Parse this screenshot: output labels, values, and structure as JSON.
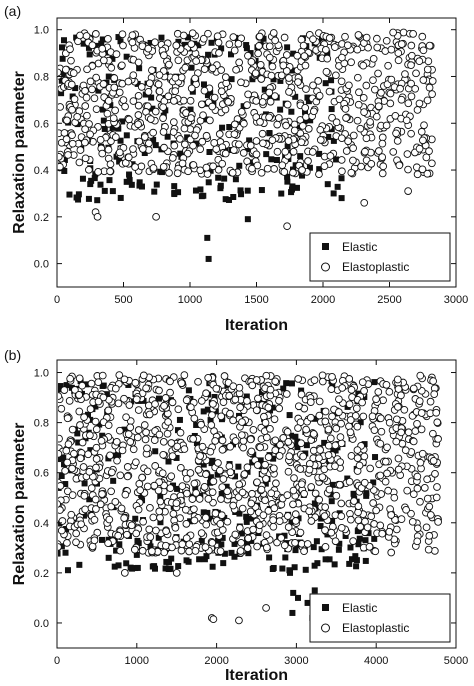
{
  "chart_data": [
    {
      "panel": "(a)",
      "type": "scatter",
      "xlabel": "Iteration",
      "ylabel": "Relaxation parameter",
      "xlim": [
        0,
        3000
      ],
      "ylim": [
        -0.1,
        1.05
      ],
      "xticks": [
        0,
        500,
        1000,
        1500,
        2000,
        2500,
        3000
      ],
      "yticks": [
        0.0,
        0.2,
        0.4,
        0.6,
        0.8,
        1.0
      ],
      "legend_position": "bottom-right",
      "series": [
        {
          "name": "Elastic",
          "marker": "filled-square",
          "x_range": [
            0,
            2150
          ],
          "band": [
            0.27,
            0.98
          ],
          "points": [
            [
              1130,
              0.11
            ],
            [
              1140,
              0.02
            ],
            [
              1435,
              0.19
            ],
            [
              1100,
              0.29
            ],
            [
              420,
              0.31
            ],
            [
              250,
              0.34
            ],
            [
              1770,
              0.33
            ],
            [
              2080,
              0.3
            ],
            [
              2140,
              0.28
            ]
          ]
        },
        {
          "name": "Elastoplastic",
          "marker": "open-circle",
          "x_range": [
            0,
            2830
          ],
          "band": [
            0.38,
            0.99
          ],
          "points": [
            [
              290,
              0.22
            ],
            [
              305,
              0.2
            ],
            [
              745,
              0.2
            ],
            [
              1730,
              0.16
            ],
            [
              2310,
              0.26
            ],
            [
              2640,
              0.31
            ]
          ]
        }
      ]
    },
    {
      "panel": "(b)",
      "type": "scatter",
      "xlabel": "Iteration",
      "ylabel": "Relaxation parameter",
      "xlim": [
        0,
        5000
      ],
      "ylim": [
        -0.1,
        1.05
      ],
      "xticks": [
        0,
        1000,
        2000,
        3000,
        4000,
        5000
      ],
      "yticks": [
        0.0,
        0.2,
        0.4,
        0.6,
        0.8,
        1.0
      ],
      "legend_position": "bottom-right",
      "series": [
        {
          "name": "Elastic",
          "marker": "filled-square",
          "x_range": [
            0,
            4000
          ],
          "band": [
            0.21,
            0.97
          ],
          "points": [
            [
              2920,
              0.2
            ],
            [
              2960,
              0.12
            ],
            [
              2950,
              0.04
            ],
            [
              3020,
              0.1
            ],
            [
              3140,
              0.08
            ],
            [
              3200,
              0.02
            ],
            [
              3230,
              0.13
            ]
          ]
        },
        {
          "name": "Elastoplastic",
          "marker": "open-circle",
          "x_range": [
            0,
            4780
          ],
          "band": [
            0.28,
            0.99
          ],
          "points": [
            [
              1940,
              0.02
            ],
            [
              1960,
              0.015
            ],
            [
              2280,
              0.01
            ],
            [
              2620,
              0.06
            ],
            [
              850,
              0.2
            ],
            [
              1500,
              0.2
            ]
          ]
        }
      ]
    }
  ]
}
